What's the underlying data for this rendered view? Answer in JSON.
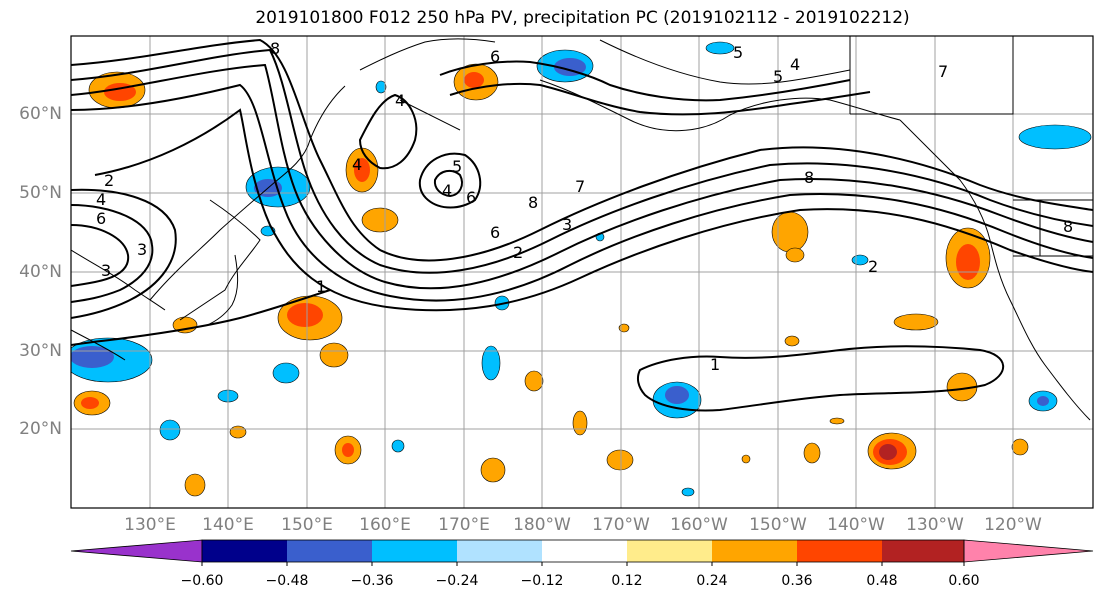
{
  "title": "2019101800 F012 250 hPa PV, precipitation PC (2019102112 - 2019102212)",
  "lat_labels": [
    "60°N",
    "50°N",
    "40°N",
    "30°N",
    "20°N"
  ],
  "lon_labels": [
    "130°E",
    "140°E",
    "150°E",
    "160°E",
    "170°E",
    "180°W",
    "170°W",
    "160°W",
    "150°W",
    "140°W",
    "130°W",
    "120°W"
  ],
  "contour_labels": [
    "8",
    "4",
    "4",
    "5",
    "6",
    "5",
    "4",
    "6",
    "2",
    "4",
    "6",
    "3",
    "7",
    "8",
    "3",
    "6",
    "2",
    "1",
    "8",
    "7",
    "5",
    "4",
    "3",
    "8",
    "2",
    "1"
  ],
  "colorbar": {
    "colors": [
      "#9932cc",
      "#00008b",
      "#3a5fcd",
      "#00bfff",
      "#b0e2ff",
      "#ffffff",
      "#ffec8b",
      "#ffa500",
      "#ff4500",
      "#b22222",
      "#ff82ab"
    ],
    "tick_labels": [
      "−0.60",
      "−0.48",
      "−0.36",
      "−0.24",
      "−0.12",
      "0.12",
      "0.24",
      "0.36",
      "0.48",
      "0.60"
    ]
  }
}
